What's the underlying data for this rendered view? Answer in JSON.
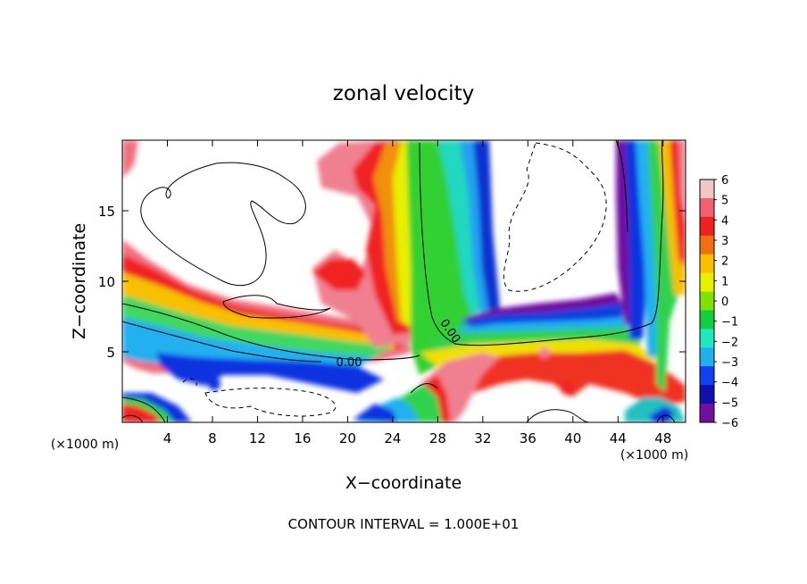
{
  "chart_data": {
    "type": "heatmap",
    "title": "zonal velocity",
    "xlabel": "X−coordinate",
    "ylabel": "Z−coordinate",
    "x_unit_left": "(×1000 m)",
    "x_unit_right": "(×1000 m)",
    "footer": "CONTOUR INTERVAL = 1.000E+01",
    "xlim": [
      0,
      50
    ],
    "ylim": [
      0,
      20
    ],
    "x_ticks": [
      4,
      8,
      12,
      16,
      20,
      24,
      28,
      32,
      36,
      40,
      44,
      48
    ],
    "x_tick_labels": [
      "4",
      "8",
      "12",
      "16",
      "20",
      "24",
      "28",
      "32",
      "36",
      "40",
      "44",
      "48"
    ],
    "y_ticks": [
      5,
      10,
      15
    ],
    "y_tick_labels": [
      "5",
      "10",
      "15"
    ],
    "colorbar": {
      "min": -6,
      "max": 6,
      "tick_labels": [
        "6",
        "5",
        "4",
        "3",
        "2",
        "1",
        "0",
        "−1",
        "−2",
        "−3",
        "−4",
        "−5",
        "−6"
      ],
      "colors": [
        "#f0c8c8",
        "#f06070",
        "#f02020",
        "#f07010",
        "#f8c000",
        "#e8f000",
        "#80e000",
        "#10d040",
        "#20e8c0",
        "#20b0f0",
        "#1040f0",
        "#1010b0",
        "#7010a0"
      ]
    },
    "contour_labels": [
      {
        "text": "0.00",
        "x": 19.5,
        "y": 4.3
      },
      {
        "text": "0.00",
        "x": 28.0,
        "y": 6.2
      }
    ]
  }
}
